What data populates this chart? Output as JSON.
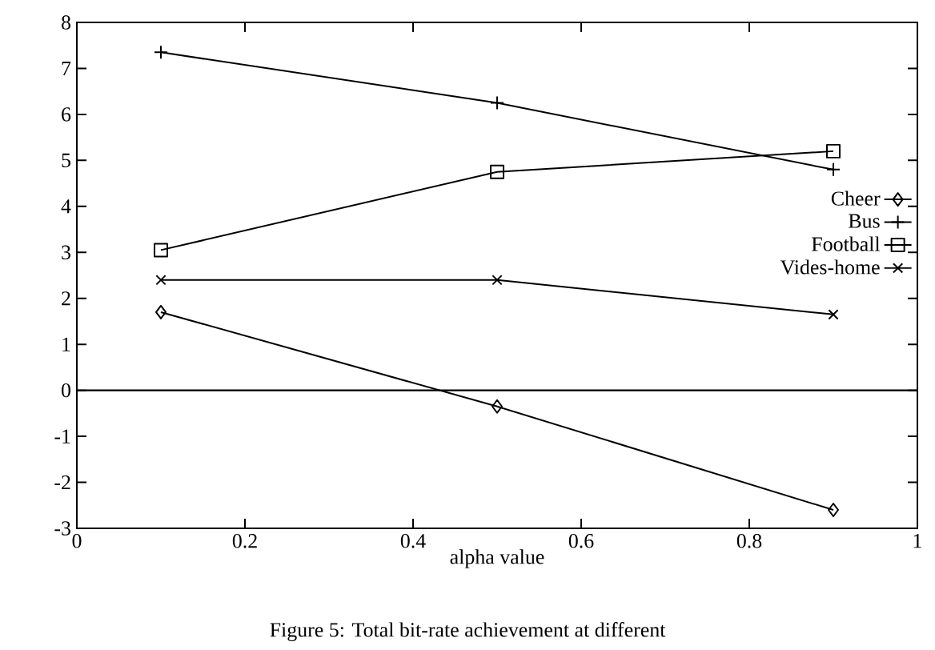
{
  "chart_data": {
    "type": "line",
    "xlabel": "alpha value",
    "x": [
      0.1,
      0.5,
      0.9
    ],
    "series": [
      {
        "name": "Cheer",
        "color": "#000000",
        "marker": "diamond",
        "values": [
          1.7,
          -0.35,
          -2.6
        ]
      },
      {
        "name": "Bus",
        "color": "#000000",
        "marker": "plus",
        "values": [
          7.35,
          6.25,
          4.8
        ]
      },
      {
        "name": "Football",
        "color": "#000000",
        "marker": "square",
        "values": [
          3.05,
          4.75,
          5.2
        ]
      },
      {
        "name": "Vides-home",
        "color": "#000000",
        "marker": "cross",
        "values": [
          2.4,
          2.4,
          1.65
        ]
      }
    ],
    "xlim": [
      0,
      1
    ],
    "xticks": [
      0,
      0.2,
      0.4,
      0.6,
      0.8,
      1
    ],
    "ylim": [
      -3,
      8
    ],
    "yticks": [
      -3,
      -2,
      -1,
      0,
      1,
      2,
      3,
      4,
      5,
      6,
      7,
      8
    ],
    "ref_lines": [
      {
        "axis": "y",
        "value": 0
      }
    ],
    "legend": "top right",
    "grid": false,
    "line_style": "solid",
    "annotations": [
      "Figure 5: Total bit-rate achievement at different"
    ]
  }
}
